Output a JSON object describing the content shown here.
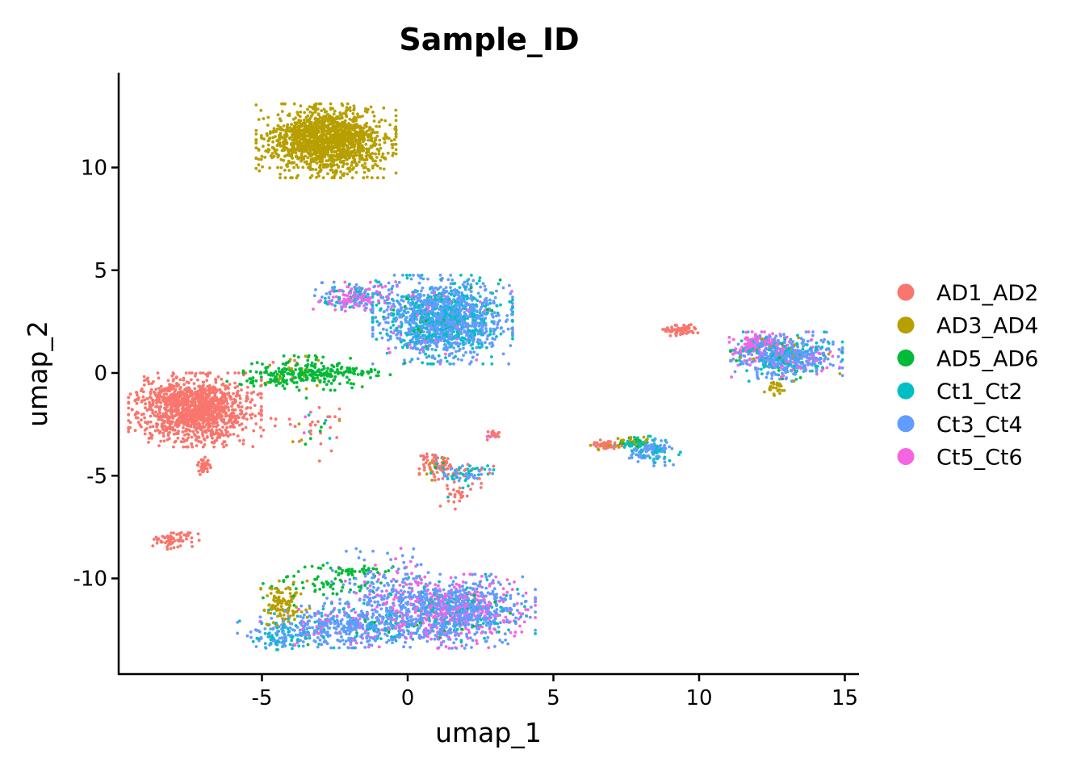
{
  "chart_data": {
    "type": "scatter",
    "title": "Sample_ID",
    "xlabel": "umap_1",
    "ylabel": "umap_2",
    "xlim": [
      -10,
      15.5
    ],
    "ylim": [
      -14.5,
      14.5
    ],
    "xticks": [
      -5,
      0,
      5,
      10,
      15
    ],
    "xtick_labels": [
      "-5",
      "0",
      "5",
      "10",
      "15"
    ],
    "yticks": [
      -10,
      -5,
      0,
      5,
      10
    ],
    "ytick_labels": [
      "-10",
      "-5",
      "0",
      "5",
      "10"
    ],
    "grid": false,
    "legend_position": "right",
    "series": [
      {
        "name": "AD1_AD2",
        "color": "#F8766D"
      },
      {
        "name": "AD3_AD4",
        "color": "#B79F00"
      },
      {
        "name": "AD5_AD6",
        "color": "#00BA38"
      },
      {
        "name": "Ct1_Ct2",
        "color": "#00BFC4"
      },
      {
        "name": "Ct3_Ct4",
        "color": "#619CFF"
      },
      {
        "name": "Ct5_Ct6",
        "color": "#F564E3"
      }
    ],
    "clusters": [
      {
        "cx": -7.3,
        "cy": -1.8,
        "sx": 0.95,
        "sy": 0.75,
        "n": 1300,
        "mix": [
          1,
          0,
          0,
          0,
          0,
          0
        ]
      },
      {
        "cx": -7.0,
        "cy": -4.5,
        "sx": 0.1,
        "sy": 0.2,
        "n": 40,
        "mix": [
          1,
          0,
          0,
          0,
          0,
          0
        ]
      },
      {
        "cx": -8.0,
        "cy": -8.1,
        "sx": 0.4,
        "sy": 0.2,
        "n": 70,
        "mix": [
          1,
          0,
          0,
          0,
          0,
          0
        ]
      },
      {
        "cx": -2.8,
        "cy": 11.3,
        "sx": 1.0,
        "sy": 0.75,
        "n": 1500,
        "mix": [
          0,
          1,
          0,
          0,
          0,
          0
        ]
      },
      {
        "cx": -3.6,
        "cy": 0.0,
        "sx": 0.85,
        "sy": 0.35,
        "n": 260,
        "mix": [
          0.02,
          0.08,
          0.9,
          0,
          0,
          0
        ]
      },
      {
        "cx": -1.7,
        "cy": 0.0,
        "sx": 0.7,
        "sy": 0.15,
        "n": 40,
        "mix": [
          0,
          0,
          1,
          0,
          0,
          0
        ]
      },
      {
        "cx": -5.0,
        "cy": -0.5,
        "sx": 0.5,
        "sy": 0.15,
        "n": 20,
        "mix": [
          0,
          0,
          1,
          0,
          0,
          0
        ]
      },
      {
        "cx": 1.2,
        "cy": 2.6,
        "sx": 1.0,
        "sy": 0.9,
        "n": 1500,
        "mix": [
          0,
          0,
          0.02,
          0.3,
          0.63,
          0.05
        ]
      },
      {
        "cx": -1.8,
        "cy": 3.7,
        "sx": 0.6,
        "sy": 0.3,
        "n": 220,
        "mix": [
          0,
          0,
          0,
          0.2,
          0.3,
          0.5
        ]
      },
      {
        "cx": 13.0,
        "cy": 0.8,
        "sx": 0.8,
        "sy": 0.5,
        "n": 650,
        "mix": [
          0,
          0.03,
          0.03,
          0.24,
          0.55,
          0.15
        ]
      },
      {
        "cx": 12.0,
        "cy": 1.4,
        "sx": 0.4,
        "sy": 0.25,
        "n": 130,
        "mix": [
          0,
          0,
          0,
          0.1,
          0.1,
          0.8
        ]
      },
      {
        "cx": 12.6,
        "cy": -0.7,
        "sx": 0.15,
        "sy": 0.2,
        "n": 25,
        "mix": [
          0,
          1,
          0,
          0,
          0,
          0
        ]
      },
      {
        "cx": 9.3,
        "cy": 2.1,
        "sx": 0.3,
        "sy": 0.12,
        "n": 60,
        "mix": [
          1,
          0,
          0,
          0,
          0,
          0
        ]
      },
      {
        "cx": 6.8,
        "cy": -3.5,
        "sx": 0.3,
        "sy": 0.1,
        "n": 45,
        "mix": [
          0.9,
          0.1,
          0,
          0,
          0,
          0
        ]
      },
      {
        "cx": 7.7,
        "cy": -3.4,
        "sx": 0.3,
        "sy": 0.15,
        "n": 70,
        "mix": [
          0,
          0.4,
          0.3,
          0.3,
          0,
          0
        ]
      },
      {
        "cx": 8.4,
        "cy": -3.8,
        "sx": 0.4,
        "sy": 0.3,
        "n": 120,
        "mix": [
          0,
          0,
          0,
          0.4,
          0.6,
          0
        ]
      },
      {
        "cx": 1.0,
        "cy": -4.5,
        "sx": 0.25,
        "sy": 0.3,
        "n": 90,
        "mix": [
          0.85,
          0.05,
          0.05,
          0.05,
          0,
          0
        ]
      },
      {
        "cx": 2.0,
        "cy": -4.9,
        "sx": 0.5,
        "sy": 0.2,
        "n": 80,
        "mix": [
          0.2,
          0,
          0,
          0.45,
          0.35,
          0
        ]
      },
      {
        "cx": 1.7,
        "cy": -5.9,
        "sx": 0.35,
        "sy": 0.3,
        "n": 30,
        "mix": [
          0.9,
          0,
          0,
          0.1,
          0,
          0
        ]
      },
      {
        "cx": 2.9,
        "cy": -3.0,
        "sx": 0.15,
        "sy": 0.12,
        "n": 20,
        "mix": [
          0.9,
          0,
          0,
          0,
          0,
          0.1
        ]
      },
      {
        "cx": -3.3,
        "cy": -2.9,
        "sx": 0.4,
        "sy": 0.7,
        "n": 40,
        "mix": [
          0.6,
          0.15,
          0.1,
          0.1,
          0,
          0.05
        ]
      },
      {
        "cx": -5.0,
        "cy": -2.3,
        "sx": 0.3,
        "sy": 0.2,
        "n": 8,
        "mix": [
          1,
          0,
          0,
          0,
          0,
          0
        ]
      },
      {
        "cx": 1.5,
        "cy": -11.6,
        "sx": 1.2,
        "sy": 0.75,
        "n": 1100,
        "mix": [
          0,
          0,
          0.01,
          0.1,
          0.55,
          0.34
        ]
      },
      {
        "cx": -2.0,
        "cy": -12.3,
        "sx": 1.6,
        "sy": 0.45,
        "n": 550,
        "mix": [
          0,
          0,
          0.02,
          0.15,
          0.73,
          0.1
        ]
      },
      {
        "cx": -4.2,
        "cy": -11.2,
        "sx": 0.35,
        "sy": 0.45,
        "n": 120,
        "mix": [
          0,
          0.97,
          0.03,
          0,
          0,
          0
        ]
      },
      {
        "cx": -2.8,
        "cy": -10.2,
        "sx": 0.9,
        "sy": 0.35,
        "n": 60,
        "mix": [
          0,
          0,
          1,
          0,
          0,
          0
        ]
      },
      {
        "cx": -1.7,
        "cy": -9.6,
        "sx": 0.6,
        "sy": 0.1,
        "n": 35,
        "mix": [
          0,
          0,
          1,
          0,
          0,
          0
        ]
      },
      {
        "cx": -4.3,
        "cy": -12.9,
        "sx": 0.5,
        "sy": 0.3,
        "n": 100,
        "mix": [
          0,
          0,
          0,
          0.55,
          0.45,
          0
        ]
      },
      {
        "cx": -0.7,
        "cy": -10.7,
        "sx": 0.9,
        "sy": 0.9,
        "n": 200,
        "mix": [
          0,
          0,
          0,
          0.05,
          0.7,
          0.25
        ]
      }
    ]
  }
}
